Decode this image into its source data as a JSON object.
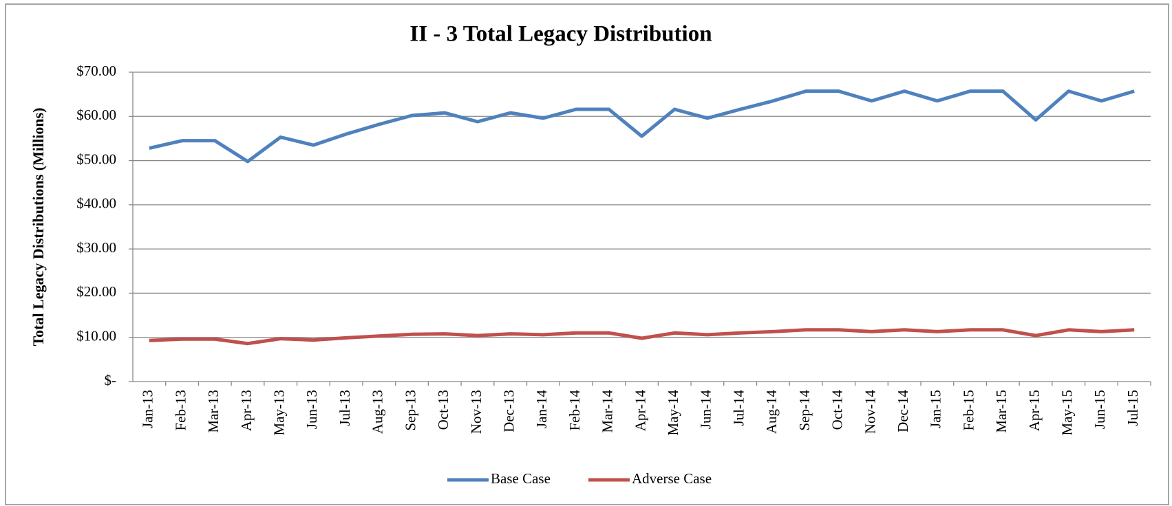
{
  "chart_data": {
    "type": "line",
    "title": "II - 3 Total Legacy Distribution",
    "y_label": "Total Legacy Distributions (Millions)",
    "categories": [
      "Jan-13",
      "Feb-13",
      "Mar-13",
      "Apr-13",
      "May-13",
      "Jun-13",
      "Jul-13",
      "Aug-13",
      "Sep-13",
      "Oct-13",
      "Nov-13",
      "Dec-13",
      "Jan-14",
      "Feb-14",
      "Mar-14",
      "Apr-14",
      "May-14",
      "Jun-14",
      "Jul-14",
      "Aug-14",
      "Sep-14",
      "Oct-14",
      "Nov-14",
      "Dec-14",
      "Jan-15",
      "Feb-15",
      "Mar-15",
      "Apr-15",
      "May-15",
      "Jun-15",
      "Jul-15"
    ],
    "series": [
      {
        "name": "Base Case",
        "color": "#4f81bd",
        "values": [
          52.8,
          54.5,
          54.5,
          49.8,
          55.3,
          53.5,
          56,
          58.2,
          60.2,
          60.8,
          58.8,
          60.8,
          59.6,
          61.6,
          61.6,
          55.5,
          61.6,
          59.6,
          61.6,
          63.5,
          65.7,
          65.7,
          63.5,
          65.7,
          63.5,
          65.7,
          65.7,
          59.2,
          65.7,
          63.5,
          65.7
        ]
      },
      {
        "name": "Adverse Case",
        "color": "#c0504d",
        "values": [
          9.3,
          9.6,
          9.6,
          8.6,
          9.7,
          9.4,
          9.9,
          10.3,
          10.7,
          10.8,
          10.4,
          10.8,
          10.6,
          11.0,
          11.0,
          9.8,
          11.0,
          10.6,
          11.0,
          11.3,
          11.7,
          11.7,
          11.3,
          11.7,
          11.3,
          11.7,
          11.7,
          10.4,
          11.7,
          11.3,
          11.7
        ]
      }
    ],
    "ylim": [
      0,
      70
    ],
    "yticks": [
      {
        "value": 0,
        "label": "$-"
      },
      {
        "value": 10,
        "label": "$10.00"
      },
      {
        "value": 20,
        "label": "$20.00"
      },
      {
        "value": 30,
        "label": "$30.00"
      },
      {
        "value": 40,
        "label": "$40.00"
      },
      {
        "value": 50,
        "label": "$50.00"
      },
      {
        "value": 60,
        "label": "$60.00"
      },
      {
        "value": 70,
        "label": "$70.00"
      }
    ],
    "grid": true,
    "legend": "bottom"
  }
}
